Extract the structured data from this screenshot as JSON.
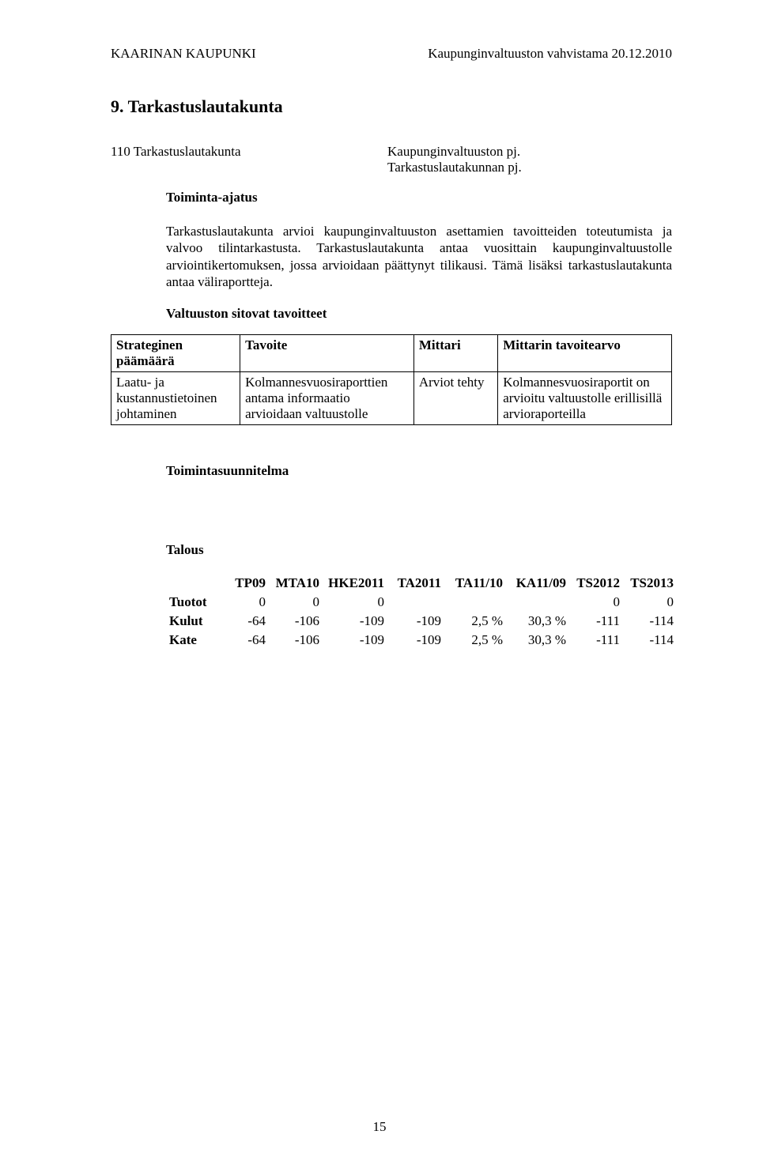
{
  "header": {
    "left": "KAARINAN KAUPUNKI",
    "right": "Kaupunginvaltuuston vahvistama 20.12.2010"
  },
  "section": {
    "number_title": "9. Tarkastuslautakunta",
    "sub_left": "110 Tarkastuslautakunta",
    "sub_right_1": "Kaupunginvaltuuston pj.",
    "sub_right_2": "Tarkastuslautakunnan pj."
  },
  "toiminta": {
    "label": "Toiminta-ajatus",
    "para": "Tarkastuslautakunta arvioi kaupunginvaltuuston asettamien tavoitteiden toteutumista ja valvoo tilintarkastusta. Tarkastuslautakunta antaa vuosittain kaupunginvaltuustolle arviointikertomuksen, jossa arvioidaan päättynyt tilikausi. Tämä lisäksi tarkastuslautakunta antaa väliraportteja."
  },
  "tavoitteet": {
    "label": "Valtuuston sitovat tavoitteet",
    "columns": {
      "c1": "Strateginen päämäärä",
      "c2": "Tavoite",
      "c3": "Mittari",
      "c4": "Mittarin tavoitearvo"
    },
    "row1": {
      "c1": "Laatu- ja kustannustietoinen johtaminen",
      "c2": "Kolmannesvuosiraporttien antama informaatio arvioidaan valtuustolle",
      "c3": "Arviot tehty",
      "c4": "Kolmannesvuosiraportit on arvioitu valtuustolle erillisillä arvioraporteilla"
    }
  },
  "toimintasuunnitelma": "Toimintasuunnitelma",
  "talous": {
    "label": "Talous",
    "columns": [
      "",
      "TP09",
      "MTA10",
      "HKE2011",
      "TA2011",
      "TA11/10",
      "KA11/09",
      "TS2012",
      "TS2013"
    ],
    "rows": [
      {
        "label": "Tuotot",
        "vals": [
          "0",
          "0",
          "0",
          "",
          "",
          "",
          "0",
          "0"
        ]
      },
      {
        "label": "Kulut",
        "vals": [
          "-64",
          "-106",
          "-109",
          "-109",
          "2,5 %",
          "30,3 %",
          "-111",
          "-114"
        ]
      },
      {
        "label": "Kate",
        "vals": [
          "-64",
          "-106",
          "-109",
          "-109",
          "2,5 %",
          "30,3 %",
          "-111",
          "-114"
        ]
      }
    ],
    "col_widths": [
      "72px",
      "58px",
      "68px",
      "82px",
      "72px",
      "78px",
      "80px",
      "68px",
      "68px"
    ]
  },
  "page_number": "15",
  "colors": {
    "text": "#000000",
    "background": "#ffffff",
    "border": "#000000"
  },
  "typography": {
    "body_fontsize_pt": 12,
    "heading_fontsize_pt": 16,
    "font_family": "Times New Roman"
  }
}
